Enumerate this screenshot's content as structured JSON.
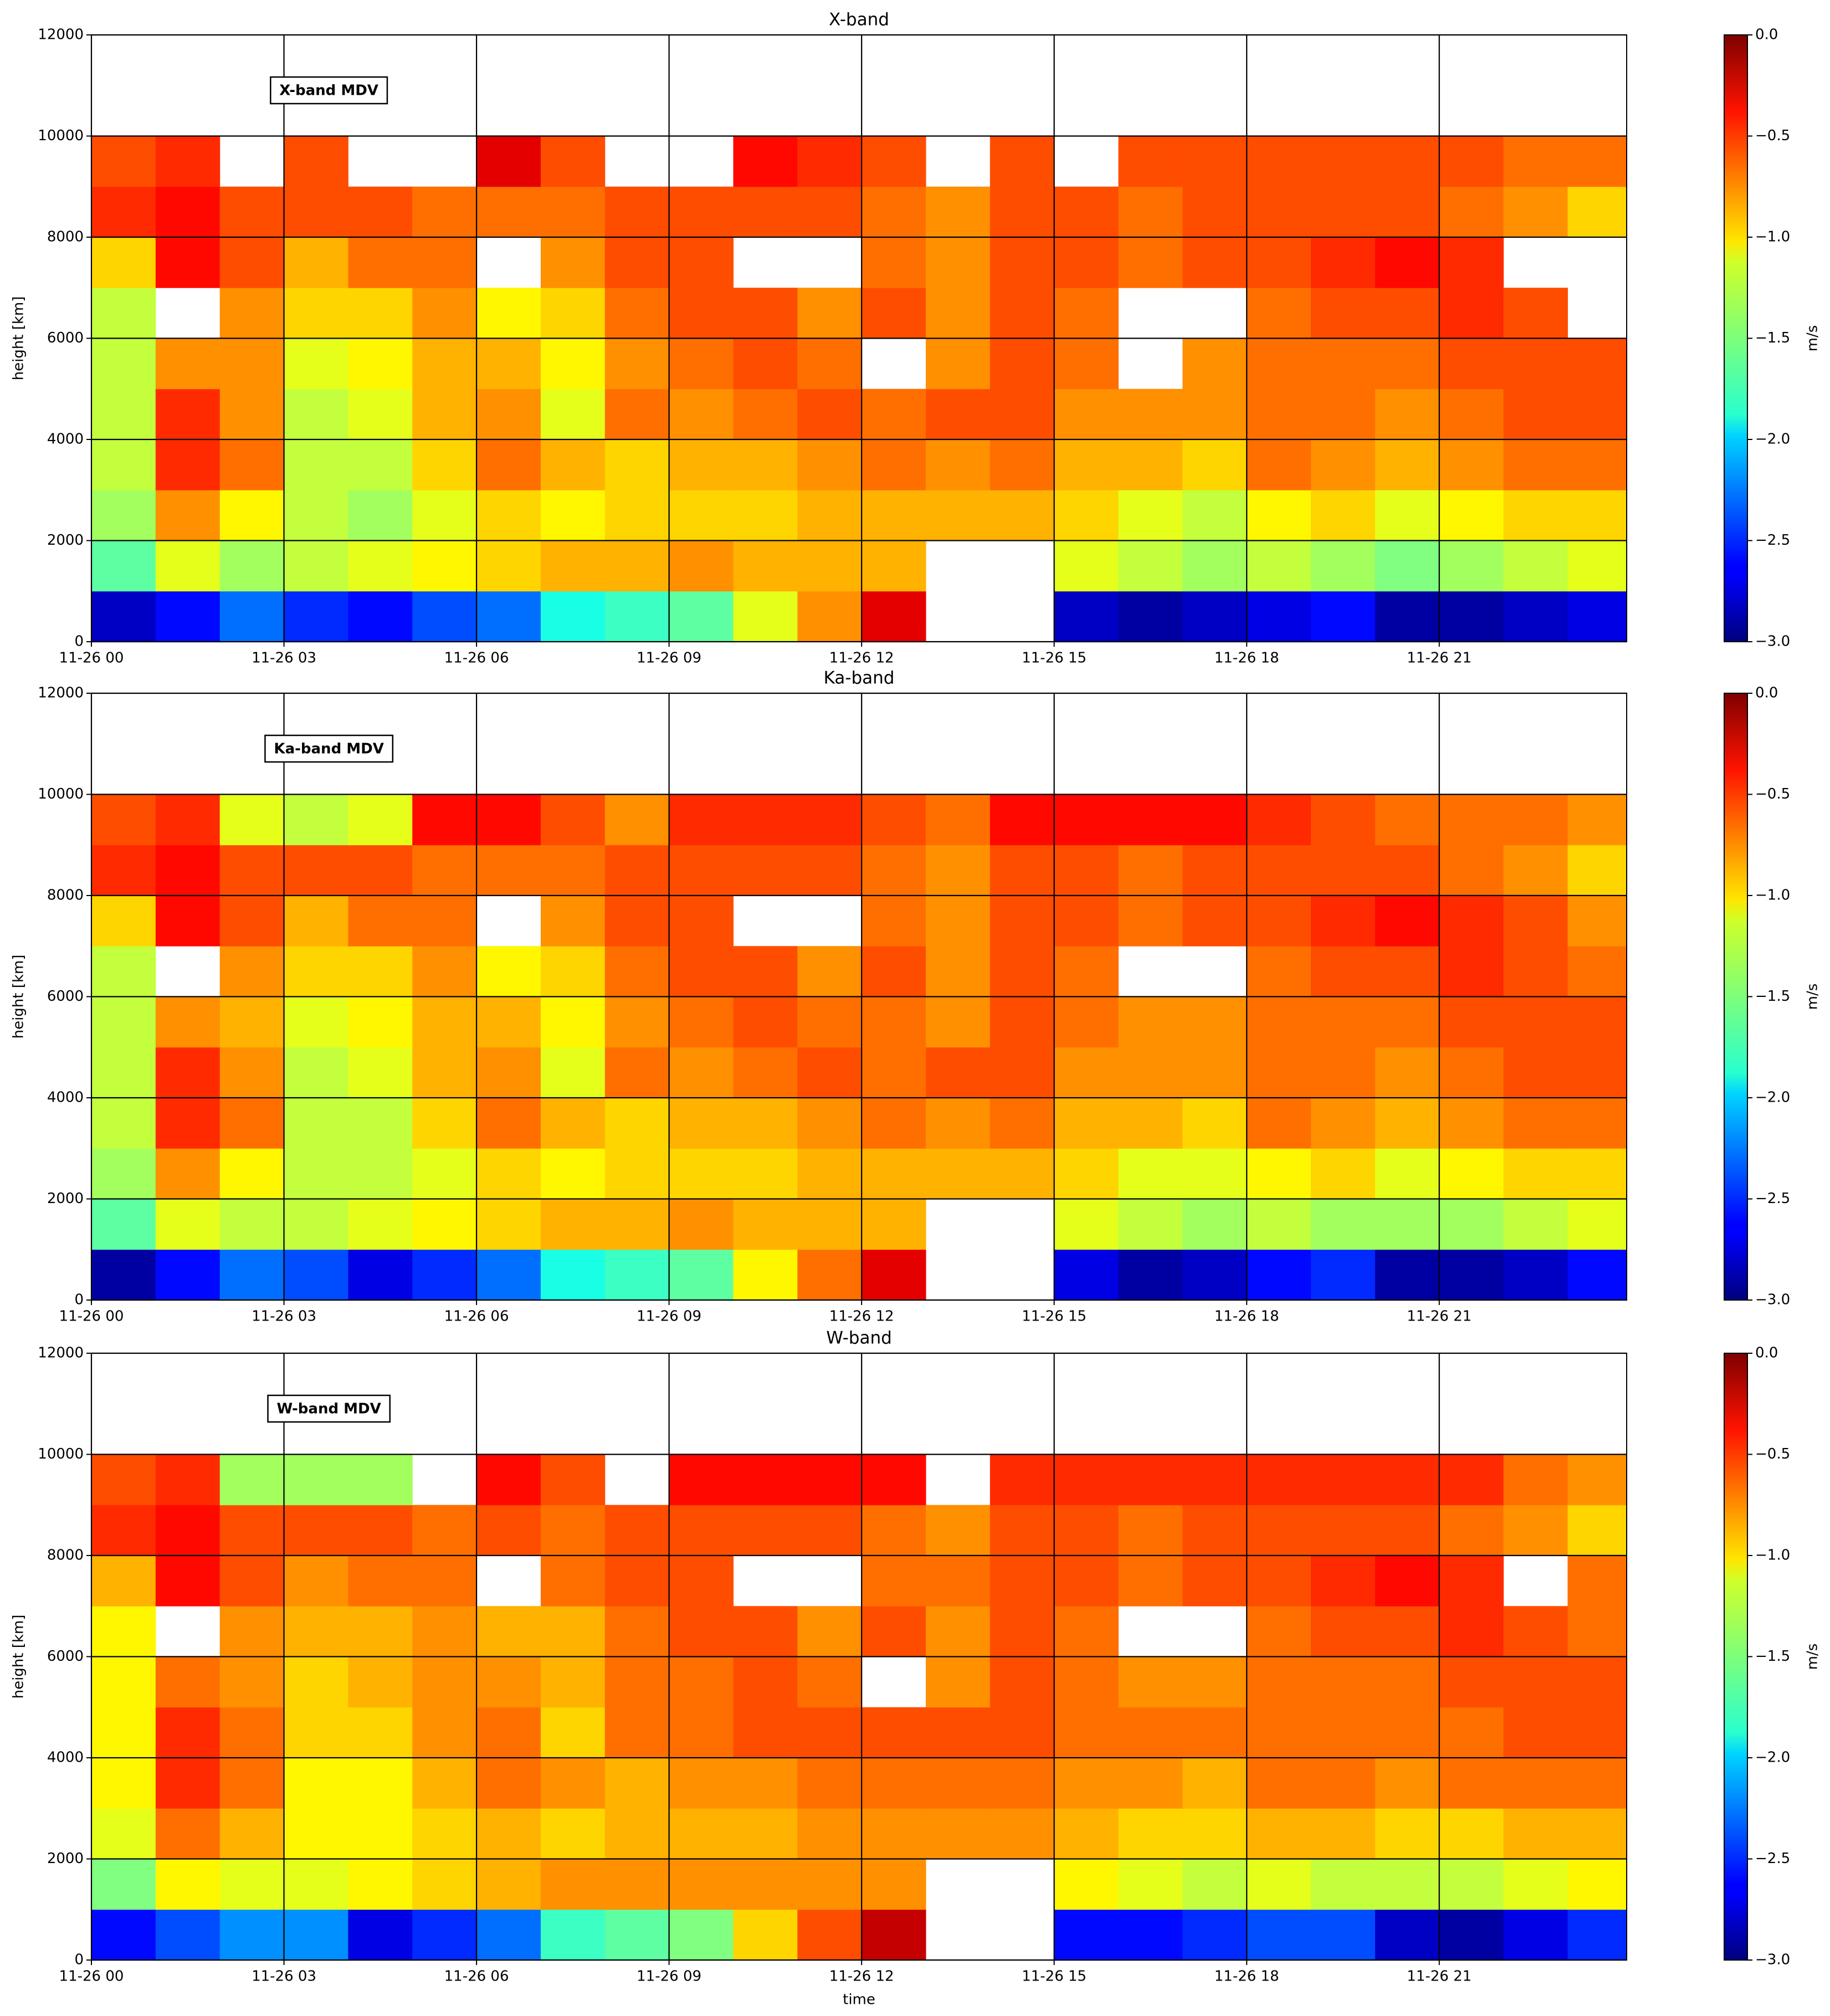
{
  "chart_data": [
    {
      "type": "heatmap",
      "title": "X-band",
      "annotation": "X-band MDV",
      "ylabel": "height [km]",
      "colormap": "jet",
      "grid": true,
      "xbins": [
        0,
        1,
        2,
        3,
        4,
        5,
        6,
        7,
        8,
        9,
        10,
        11,
        12,
        13,
        14,
        15,
        16,
        17,
        18,
        19,
        20,
        21,
        22,
        23,
        24
      ],
      "ybins": [
        0,
        1000,
        2000,
        3000,
        4000,
        5000,
        6000,
        7000,
        8000,
        9000,
        10000
      ],
      "z": [
        [
          -2.8,
          -2.6,
          -2.3,
          -2.5,
          -2.6,
          -2.4,
          -2.3,
          -1.8,
          -1.7,
          -1.6,
          -1.2,
          -0.8,
          -0.3,
          null,
          null,
          -2.8,
          -2.9,
          -2.8,
          -2.7,
          -2.6,
          -2.9,
          -2.9,
          -2.8,
          -2.7
        ],
        [
          -1.6,
          -1.2,
          -1.4,
          -1.3,
          -1.2,
          -1.1,
          -1.0,
          -0.9,
          -0.9,
          -0.8,
          -0.9,
          -0.9,
          -0.9,
          null,
          null,
          -1.2,
          -1.3,
          -1.4,
          -1.3,
          -1.4,
          -1.5,
          -1.4,
          -1.3,
          -1.2
        ],
        [
          -1.4,
          -0.8,
          -1.1,
          -1.3,
          -1.4,
          -1.2,
          -1.0,
          -1.1,
          -1.0,
          -1.0,
          -1.0,
          -0.9,
          -0.9,
          -0.9,
          -0.9,
          -1.0,
          -1.2,
          -1.3,
          -1.1,
          -1.0,
          -1.2,
          -1.1,
          -1.0,
          -1.0
        ],
        [
          -1.3,
          -0.5,
          -0.7,
          -1.3,
          -1.3,
          -1.0,
          -0.7,
          -0.9,
          -1.0,
          -0.9,
          -0.9,
          -0.8,
          -0.7,
          -0.8,
          -0.7,
          -0.9,
          -0.9,
          -1.0,
          -0.7,
          -0.8,
          -0.9,
          -0.8,
          -0.7,
          -0.7
        ],
        [
          -1.3,
          -0.5,
          -0.8,
          -1.3,
          -1.2,
          -0.9,
          -0.8,
          -1.2,
          -0.7,
          -0.8,
          -0.7,
          -0.6,
          -0.7,
          -0.6,
          -0.6,
          -0.8,
          -0.8,
          -0.8,
          -0.7,
          -0.7,
          -0.8,
          -0.7,
          -0.6,
          -0.6
        ],
        [
          -1.3,
          -0.8,
          -0.8,
          -1.2,
          -1.1,
          -0.9,
          -0.9,
          -1.1,
          -0.8,
          -0.7,
          -0.6,
          -0.7,
          null,
          -0.8,
          -0.6,
          -0.7,
          null,
          -0.8,
          -0.7,
          -0.7,
          -0.7,
          -0.6,
          -0.6,
          -0.6
        ],
        [
          -1.3,
          null,
          -0.8,
          -1.0,
          -1.0,
          -0.8,
          -1.1,
          -1.0,
          -0.7,
          -0.6,
          -0.6,
          -0.8,
          -0.6,
          -0.8,
          -0.6,
          -0.7,
          null,
          null,
          -0.7,
          -0.6,
          -0.6,
          -0.5,
          -0.6,
          null
        ],
        [
          -1.0,
          -0.4,
          -0.6,
          -0.9,
          -0.7,
          -0.7,
          null,
          -0.8,
          -0.6,
          -0.6,
          null,
          null,
          -0.7,
          -0.8,
          -0.6,
          -0.6,
          -0.7,
          -0.6,
          -0.6,
          -0.5,
          -0.4,
          -0.5,
          null,
          null
        ],
        [
          -0.5,
          -0.4,
          -0.6,
          -0.6,
          -0.6,
          -0.7,
          -0.7,
          -0.7,
          -0.6,
          -0.6,
          -0.6,
          -0.6,
          -0.7,
          -0.8,
          -0.6,
          -0.6,
          -0.7,
          -0.6,
          -0.6,
          -0.6,
          -0.6,
          -0.7,
          -0.8,
          -1.0
        ],
        [
          -0.6,
          -0.5,
          null,
          -0.6,
          null,
          null,
          -0.3,
          -0.6,
          null,
          null,
          -0.4,
          -0.5,
          -0.6,
          null,
          -0.6,
          null,
          -0.6,
          -0.6,
          -0.6,
          -0.6,
          -0.6,
          -0.6,
          -0.7,
          -0.7
        ]
      ],
      "xlim": [
        0,
        23.92
      ],
      "ylim": [
        0,
        12000
      ],
      "xticks": [
        {
          "value": 0,
          "label": "11-26 00"
        },
        {
          "value": 3,
          "label": "11-26 03"
        },
        {
          "value": 6,
          "label": "11-26 06"
        },
        {
          "value": 9,
          "label": "11-26 09"
        },
        {
          "value": 12,
          "label": "11-26 12"
        },
        {
          "value": 15,
          "label": "11-26 15"
        },
        {
          "value": 18,
          "label": "11-26 18"
        },
        {
          "value": 21,
          "label": "11-26 21"
        }
      ],
      "yticks": [
        0,
        2000,
        4000,
        6000,
        8000,
        10000,
        12000
      ],
      "colorbar": {
        "label": "m/s",
        "lim": [
          -3,
          0
        ],
        "ticks": [
          {
            "value": -3,
            "label": "−3.0"
          },
          {
            "value": -2.5,
            "label": "−2.5"
          },
          {
            "value": -2,
            "label": "−2.0"
          },
          {
            "value": -1.5,
            "label": "−1.5"
          },
          {
            "value": -1,
            "label": "−1.0"
          },
          {
            "value": -0.5,
            "label": "−0.5"
          },
          {
            "value": 0,
            "label": "0.0"
          }
        ]
      }
    },
    {
      "type": "heatmap",
      "title": "Ka-band",
      "annotation": "Ka-band MDV",
      "ylabel": "height [km]",
      "colormap": "jet",
      "grid": true,
      "xbins": [
        0,
        1,
        2,
        3,
        4,
        5,
        6,
        7,
        8,
        9,
        10,
        11,
        12,
        13,
        14,
        15,
        16,
        17,
        18,
        19,
        20,
        21,
        22,
        23,
        24
      ],
      "ybins": [
        0,
        1000,
        2000,
        3000,
        4000,
        5000,
        6000,
        7000,
        8000,
        9000,
        10000
      ],
      "z": [
        [
          -2.9,
          -2.6,
          -2.3,
          -2.4,
          -2.7,
          -2.5,
          -2.3,
          -1.8,
          -1.7,
          -1.6,
          -1.1,
          -0.7,
          -0.3,
          null,
          null,
          -2.7,
          -2.9,
          -2.8,
          -2.6,
          -2.5,
          -2.9,
          -2.9,
          -2.8,
          -2.6
        ],
        [
          -1.6,
          -1.2,
          -1.3,
          -1.3,
          -1.2,
          -1.1,
          -1.0,
          -0.9,
          -0.9,
          -0.8,
          -0.9,
          -0.9,
          -0.9,
          null,
          null,
          -1.2,
          -1.3,
          -1.4,
          -1.3,
          -1.4,
          -1.4,
          -1.4,
          -1.3,
          -1.2
        ],
        [
          -1.4,
          -0.8,
          -1.1,
          -1.3,
          -1.3,
          -1.2,
          -1.0,
          -1.1,
          -1.0,
          -1.0,
          -1.0,
          -0.9,
          -0.9,
          -0.9,
          -0.9,
          -1.0,
          -1.2,
          -1.2,
          -1.1,
          -1.0,
          -1.2,
          -1.1,
          -1.0,
          -1.0
        ],
        [
          -1.3,
          -0.5,
          -0.7,
          -1.3,
          -1.3,
          -1.0,
          -0.7,
          -0.9,
          -1.0,
          -0.9,
          -0.9,
          -0.8,
          -0.7,
          -0.8,
          -0.7,
          -0.9,
          -0.9,
          -1.0,
          -0.7,
          -0.8,
          -0.9,
          -0.8,
          -0.7,
          -0.7
        ],
        [
          -1.3,
          -0.5,
          -0.8,
          -1.3,
          -1.2,
          -0.9,
          -0.8,
          -1.2,
          -0.7,
          -0.8,
          -0.7,
          -0.6,
          -0.7,
          -0.6,
          -0.6,
          -0.8,
          -0.8,
          -0.8,
          -0.7,
          -0.7,
          -0.8,
          -0.7,
          -0.6,
          -0.6
        ],
        [
          -1.3,
          -0.8,
          -0.9,
          -1.2,
          -1.1,
          -0.9,
          -0.9,
          -1.1,
          -0.8,
          -0.7,
          -0.6,
          -0.7,
          -0.7,
          -0.8,
          -0.6,
          -0.7,
          -0.8,
          -0.8,
          -0.7,
          -0.7,
          -0.7,
          -0.6,
          -0.6,
          -0.6
        ],
        [
          -1.3,
          null,
          -0.8,
          -1.0,
          -1.0,
          -0.8,
          -1.1,
          -1.0,
          -0.7,
          -0.6,
          -0.6,
          -0.8,
          -0.6,
          -0.8,
          -0.6,
          -0.7,
          null,
          null,
          -0.7,
          -0.6,
          -0.6,
          -0.5,
          -0.6,
          -0.7
        ],
        [
          -1.0,
          -0.4,
          -0.6,
          -0.9,
          -0.7,
          -0.7,
          null,
          -0.8,
          -0.6,
          -0.6,
          null,
          null,
          -0.7,
          -0.8,
          -0.6,
          -0.6,
          -0.7,
          -0.6,
          -0.6,
          -0.5,
          -0.4,
          -0.5,
          -0.6,
          -0.8
        ],
        [
          -0.5,
          -0.4,
          -0.6,
          -0.6,
          -0.6,
          -0.7,
          -0.7,
          -0.7,
          -0.6,
          -0.6,
          -0.6,
          -0.6,
          -0.7,
          -0.8,
          -0.6,
          -0.6,
          -0.7,
          -0.6,
          -0.6,
          -0.6,
          -0.6,
          -0.7,
          -0.8,
          -1.0
        ],
        [
          -0.6,
          -0.5,
          -1.2,
          -1.3,
          -1.2,
          -0.4,
          -0.4,
          -0.6,
          -0.8,
          -0.5,
          -0.5,
          -0.5,
          -0.6,
          -0.7,
          -0.4,
          -0.4,
          -0.4,
          -0.4,
          -0.5,
          -0.6,
          -0.7,
          -0.7,
          -0.7,
          -0.8
        ]
      ],
      "xlim": [
        0,
        23.92
      ],
      "ylim": [
        0,
        12000
      ],
      "xticks": [
        {
          "value": 0,
          "label": "11-26 00"
        },
        {
          "value": 3,
          "label": "11-26 03"
        },
        {
          "value": 6,
          "label": "11-26 06"
        },
        {
          "value": 9,
          "label": "11-26 09"
        },
        {
          "value": 12,
          "label": "11-26 12"
        },
        {
          "value": 15,
          "label": "11-26 15"
        },
        {
          "value": 18,
          "label": "11-26 18"
        },
        {
          "value": 21,
          "label": "11-26 21"
        }
      ],
      "yticks": [
        0,
        2000,
        4000,
        6000,
        8000,
        10000,
        12000
      ],
      "colorbar": {
        "label": "m/s",
        "lim": [
          -3,
          0
        ],
        "ticks": [
          {
            "value": -3,
            "label": "−3.0"
          },
          {
            "value": -2.5,
            "label": "−2.5"
          },
          {
            "value": -2,
            "label": "−2.0"
          },
          {
            "value": -1.5,
            "label": "−1.5"
          },
          {
            "value": -1,
            "label": "−1.0"
          },
          {
            "value": -0.5,
            "label": "−0.5"
          },
          {
            "value": 0,
            "label": "0.0"
          }
        ]
      }
    },
    {
      "type": "heatmap",
      "title": "W-band",
      "annotation": "W-band MDV",
      "ylabel": "height [km]",
      "xlabel": "time",
      "colormap": "jet",
      "grid": true,
      "xbins": [
        0,
        1,
        2,
        3,
        4,
        5,
        6,
        7,
        8,
        9,
        10,
        11,
        12,
        13,
        14,
        15,
        16,
        17,
        18,
        19,
        20,
        21,
        22,
        23,
        24
      ],
      "ybins": [
        0,
        1000,
        2000,
        3000,
        4000,
        5000,
        6000,
        7000,
        8000,
        9000,
        10000
      ],
      "z": [
        [
          -2.6,
          -2.4,
          -2.2,
          -2.2,
          -2.7,
          -2.5,
          -2.3,
          -1.7,
          -1.6,
          -1.5,
          -1.0,
          -0.6,
          -0.2,
          null,
          null,
          -2.6,
          -2.6,
          -2.5,
          -2.4,
          -2.4,
          -2.8,
          -2.9,
          -2.7,
          -2.5
        ],
        [
          -1.5,
          -1.1,
          -1.2,
          -1.2,
          -1.1,
          -1.0,
          -0.9,
          -0.8,
          -0.8,
          -0.8,
          -0.8,
          -0.8,
          -0.8,
          null,
          null,
          -1.1,
          -1.2,
          -1.3,
          -1.2,
          -1.3,
          -1.3,
          -1.3,
          -1.2,
          -1.1
        ],
        [
          -1.2,
          -0.7,
          -0.9,
          -1.1,
          -1.1,
          -1.0,
          -0.9,
          -1.0,
          -0.9,
          -0.9,
          -0.9,
          -0.8,
          -0.8,
          -0.8,
          -0.8,
          -0.9,
          -1.0,
          -1.0,
          -0.9,
          -0.9,
          -1.0,
          -1.0,
          -0.9,
          -0.9
        ],
        [
          -1.1,
          -0.5,
          -0.7,
          -1.1,
          -1.1,
          -0.9,
          -0.7,
          -0.8,
          -0.9,
          -0.8,
          -0.8,
          -0.7,
          -0.7,
          -0.7,
          -0.7,
          -0.8,
          -0.8,
          -0.9,
          -0.7,
          -0.7,
          -0.8,
          -0.7,
          -0.7,
          -0.7
        ],
        [
          -1.1,
          -0.5,
          -0.7,
          -1.0,
          -1.0,
          -0.8,
          -0.7,
          -1.0,
          -0.7,
          -0.7,
          -0.6,
          -0.6,
          -0.6,
          -0.6,
          -0.6,
          -0.7,
          -0.7,
          -0.7,
          -0.7,
          -0.7,
          -0.7,
          -0.7,
          -0.6,
          -0.6
        ],
        [
          -1.1,
          -0.7,
          -0.8,
          -1.0,
          -0.9,
          -0.8,
          -0.8,
          -0.9,
          -0.7,
          -0.7,
          -0.6,
          -0.7,
          null,
          -0.8,
          -0.6,
          -0.7,
          -0.8,
          -0.8,
          -0.7,
          -0.7,
          -0.7,
          -0.6,
          -0.6,
          -0.6
        ],
        [
          -1.1,
          null,
          -0.8,
          -0.9,
          -0.9,
          -0.8,
          -0.9,
          -0.9,
          -0.7,
          -0.6,
          -0.6,
          -0.8,
          -0.6,
          -0.8,
          -0.6,
          -0.7,
          null,
          null,
          -0.7,
          -0.6,
          -0.6,
          -0.5,
          -0.6,
          -0.7
        ],
        [
          -0.9,
          -0.4,
          -0.6,
          -0.8,
          -0.7,
          -0.7,
          null,
          -0.7,
          -0.6,
          -0.6,
          null,
          null,
          -0.7,
          -0.7,
          -0.6,
          -0.6,
          -0.7,
          -0.6,
          -0.6,
          -0.5,
          -0.4,
          -0.5,
          null,
          -0.7
        ],
        [
          -0.5,
          -0.4,
          -0.6,
          -0.6,
          -0.6,
          -0.7,
          -0.6,
          -0.7,
          -0.6,
          -0.6,
          -0.6,
          -0.6,
          -0.7,
          -0.8,
          -0.6,
          -0.6,
          -0.7,
          -0.6,
          -0.6,
          -0.6,
          -0.6,
          -0.7,
          -0.8,
          -1.0
        ],
        [
          -0.6,
          -0.5,
          -1.4,
          -1.4,
          -1.4,
          null,
          -0.4,
          -0.6,
          null,
          -0.4,
          -0.4,
          -0.4,
          -0.4,
          null,
          -0.5,
          -0.5,
          -0.5,
          -0.5,
          -0.5,
          -0.5,
          -0.5,
          -0.5,
          -0.7,
          -0.8
        ]
      ],
      "xlim": [
        0,
        23.92
      ],
      "ylim": [
        0,
        12000
      ],
      "xticks": [
        {
          "value": 0,
          "label": "11-26 00"
        },
        {
          "value": 3,
          "label": "11-26 03"
        },
        {
          "value": 6,
          "label": "11-26 06"
        },
        {
          "value": 9,
          "label": "11-26 09"
        },
        {
          "value": 12,
          "label": "11-26 12"
        },
        {
          "value": 15,
          "label": "11-26 15"
        },
        {
          "value": 18,
          "label": "11-26 18"
        },
        {
          "value": 21,
          "label": "11-26 21"
        }
      ],
      "yticks": [
        0,
        2000,
        4000,
        6000,
        8000,
        10000,
        12000
      ],
      "colorbar": {
        "label": "m/s",
        "lim": [
          -3,
          0
        ],
        "ticks": [
          {
            "value": -3,
            "label": "−3.0"
          },
          {
            "value": -2.5,
            "label": "−2.5"
          },
          {
            "value": -2,
            "label": "−2.0"
          },
          {
            "value": -1.5,
            "label": "−1.5"
          },
          {
            "value": -1,
            "label": "−1.0"
          },
          {
            "value": -0.5,
            "label": "−0.5"
          },
          {
            "value": 0,
            "label": "0.0"
          }
        ]
      }
    }
  ]
}
